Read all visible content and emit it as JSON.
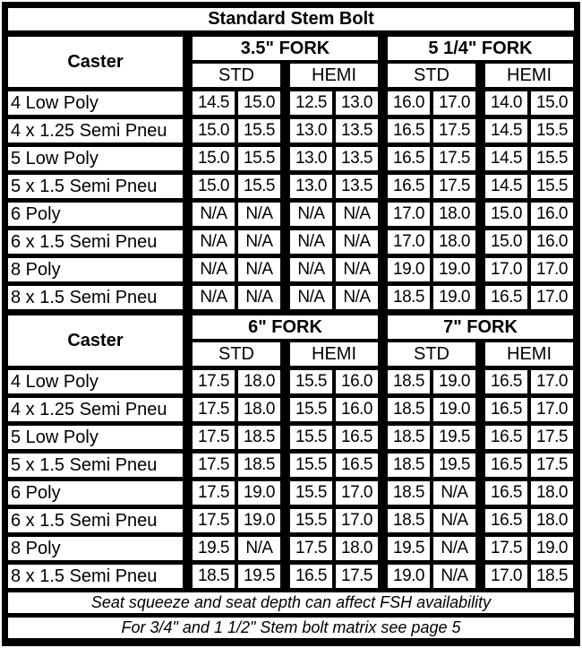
{
  "title": "Standard Stem Bolt",
  "caster_label": "Caster",
  "sub_headers": [
    "STD",
    "HEMI"
  ],
  "sections": [
    {
      "forks": [
        "3.5\" FORK",
        "5 1/4\" FORK"
      ],
      "rows": [
        {
          "name": "4 Low Poly",
          "values": [
            "14.5",
            "15.0",
            "12.5",
            "13.0",
            "16.0",
            "17.0",
            "14.0",
            "15.0"
          ]
        },
        {
          "name": "4 x 1.25 Semi Pneu",
          "values": [
            "15.0",
            "15.5",
            "13.0",
            "13.5",
            "16.5",
            "17.5",
            "14.5",
            "15.5"
          ]
        },
        {
          "name": "5 Low Poly",
          "values": [
            "15.0",
            "15.5",
            "13.0",
            "13.5",
            "16.5",
            "17.5",
            "14.5",
            "15.5"
          ]
        },
        {
          "name": "5 x 1.5 Semi Pneu",
          "values": [
            "15.0",
            "15.5",
            "13.0",
            "13.5",
            "16.5",
            "17.5",
            "14.5",
            "15.5"
          ]
        },
        {
          "name": "6 Poly",
          "values": [
            "N/A",
            "N/A",
            "N/A",
            "N/A",
            "17.0",
            "18.0",
            "15.0",
            "16.0"
          ]
        },
        {
          "name": "6 x 1.5 Semi Pneu",
          "values": [
            "N/A",
            "N/A",
            "N/A",
            "N/A",
            "17.0",
            "18.0",
            "15.0",
            "16.0"
          ]
        },
        {
          "name": "8 Poly",
          "values": [
            "N/A",
            "N/A",
            "N/A",
            "N/A",
            "19.0",
            "19.0",
            "17.0",
            "17.0"
          ]
        },
        {
          "name": "8 x 1.5 Semi Pneu",
          "values": [
            "N/A",
            "N/A",
            "N/A",
            "N/A",
            "18.5",
            "19.0",
            "16.5",
            "17.0"
          ]
        }
      ]
    },
    {
      "forks": [
        "6\" FORK",
        "7\" FORK"
      ],
      "rows": [
        {
          "name": "4 Low Poly",
          "values": [
            "17.5",
            "18.0",
            "15.5",
            "16.0",
            "18.5",
            "19.0",
            "16.5",
            "17.0"
          ]
        },
        {
          "name": "4 x 1.25 Semi Pneu",
          "values": [
            "17.5",
            "18.0",
            "15.5",
            "16.0",
            "18.5",
            "19.0",
            "16.5",
            "17.0"
          ]
        },
        {
          "name": "5 Low Poly",
          "values": [
            "17.5",
            "18.5",
            "15.5",
            "16.5",
            "18.5",
            "19.5",
            "16.5",
            "17.5"
          ]
        },
        {
          "name": "5 x 1.5 Semi Pneu",
          "values": [
            "17.5",
            "18.5",
            "15.5",
            "16.5",
            "18.5",
            "19.5",
            "16.5",
            "17.5"
          ]
        },
        {
          "name": "6 Poly",
          "values": [
            "17.5",
            "19.0",
            "15.5",
            "17.0",
            "18.5",
            "N/A",
            "16.5",
            "18.0"
          ]
        },
        {
          "name": "6 x 1.5 Semi Pneu",
          "values": [
            "17.5",
            "19.0",
            "15.5",
            "17.0",
            "18.5",
            "N/A",
            "16.5",
            "18.0"
          ]
        },
        {
          "name": "8 Poly",
          "values": [
            "19.5",
            "N/A",
            "17.5",
            "18.0",
            "19.5",
            "N/A",
            "17.5",
            "19.0"
          ]
        },
        {
          "name": "8 x 1.5 Semi Pneu",
          "values": [
            "18.5",
            "19.5",
            "16.5",
            "17.5",
            "19.0",
            "N/A",
            "17.0",
            "18.5"
          ]
        }
      ]
    }
  ],
  "footnotes": [
    "Seat squeeze and seat depth can affect FSH availability",
    "For 3/4\" and 1 1/2\" Stem bolt matrix see page 5"
  ]
}
